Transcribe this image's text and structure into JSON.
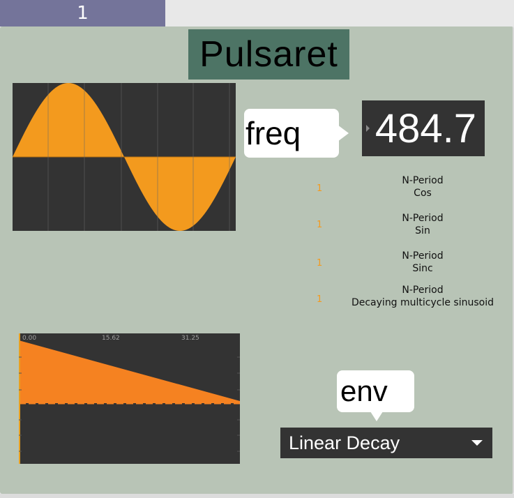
{
  "tabs": [
    {
      "label": "1"
    }
  ],
  "title": "Pulsaret",
  "freq": {
    "label": "freq",
    "value": "484.7"
  },
  "options": [
    {
      "value": "1",
      "line1": "N-Period",
      "line2": "Cos"
    },
    {
      "value": "1",
      "line1": "N-Period",
      "line2": "Sin"
    },
    {
      "value": "1",
      "line1": "N-Period",
      "line2": "Sinc"
    },
    {
      "value": "1",
      "line1": "N-Period",
      "line2": "Decaying multicycle sinusoid"
    }
  ],
  "waveform": {
    "fill_color": "#f39a1e",
    "background": "#333333"
  },
  "envelope": {
    "ruler_labels": [
      "0.00",
      "15.62",
      "31.25"
    ],
    "fill_color": "#f58221",
    "background": "#333333"
  },
  "env": {
    "label": "env",
    "selected": "Linear Decay"
  }
}
